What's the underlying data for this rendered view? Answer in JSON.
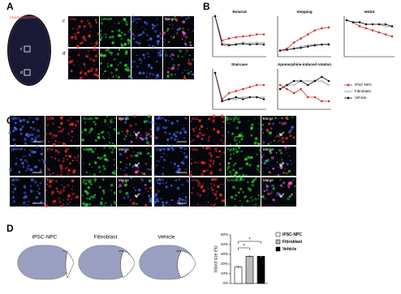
{
  "panel_a": {
    "label": "A",
    "brain_title": "hNu/Nestin/DAPI",
    "brain_boxes": [
      "c",
      "d"
    ],
    "row_labels": [
      "c",
      "d"
    ],
    "channels": [
      "hNu",
      "Nestin",
      "DAPI",
      "Merge"
    ]
  },
  "panel_b": {
    "label": "B",
    "series_names": [
      "iPSC-NPC",
      "Fibroblast",
      "Vehicle"
    ],
    "series_colors": [
      "#d62728",
      "#888888",
      "#111111"
    ],
    "charts": [
      {
        "type": "line",
        "title": "Rotarod",
        "ylim": [
          0,
          100
        ],
        "series": [
          {
            "values": [
              100,
              40,
              45,
              48,
              50,
              52,
              55,
              55
            ]
          },
          {
            "values": [
              100,
              35,
              30,
              32,
              35,
              33,
              35,
              34
            ]
          },
          {
            "values": [
              100,
              30,
              28,
              30,
              32,
              30,
              31,
              30
            ]
          }
        ]
      },
      {
        "type": "line",
        "title": "Stepping",
        "ylim": [
          0,
          100
        ],
        "series": [
          {
            "values": [
              15,
              20,
              35,
              45,
              55,
              65,
              70,
              72
            ]
          },
          {
            "values": [
              15,
              18,
              20,
              25,
              28,
              30,
              30,
              32
            ]
          },
          {
            "values": [
              15,
              17,
              20,
              22,
              25,
              28,
              30,
              30
            ]
          }
        ]
      },
      {
        "type": "line",
        "title": "mNSS",
        "ylim": [
          0,
          20
        ],
        "series": [
          {
            "values": [
              18,
              17,
              15,
              14,
              13,
              12,
              11,
              10
            ]
          },
          {
            "values": [
              18,
              17,
              17,
              16,
              16,
              16,
              15,
              15
            ]
          },
          {
            "values": [
              18,
              17,
              17,
              16,
              16,
              16,
              16,
              15
            ]
          }
        ]
      },
      {
        "type": "line",
        "title": "Staircase",
        "ylim": [
          0,
          20
        ],
        "series": [
          {
            "values": [
              18,
              5,
              8,
              9,
              10,
              11,
              12,
              12
            ]
          },
          {
            "values": [
              18,
              4,
              5,
              5,
              6,
              6,
              6,
              6
            ]
          },
          {
            "values": [
              18,
              4,
              5,
              6,
              5,
              6,
              6,
              5
            ]
          }
        ]
      },
      {
        "type": "line",
        "title": "Apomorphine-induced rotation",
        "ylim": [
          0,
          10
        ],
        "series": [
          {
            "values": [
              6,
              5,
              4,
              5,
              3,
              3,
              2,
              2
            ]
          },
          {
            "values": [
              5,
              6,
              6,
              7,
              7,
              7,
              7,
              6
            ]
          },
          {
            "values": [
              5,
              6,
              7,
              7,
              6,
              7,
              8,
              7
            ]
          }
        ]
      }
    ]
  },
  "panel_c": {
    "label": "C",
    "rows": [
      [
        "DAPI",
        "hNu",
        "Nestin",
        "Merge",
        "DAPI",
        "hNu",
        "Synp32",
        "Merge"
      ],
      [
        "DAPI",
        "hNu",
        "MAP2",
        "Merge",
        "DAPI",
        "hNu",
        "GABA",
        "Merge"
      ],
      [
        "DAPI",
        "hNu",
        "NeuN",
        "Merge",
        "DAPI",
        "hNu",
        "GAD65/67",
        "Merge"
      ]
    ]
  },
  "panel_d": {
    "label": "D",
    "groups": [
      "iPSC-NPC",
      "Fibroblast",
      "Vehicle"
    ],
    "chart_data": {
      "type": "bar",
      "categories": [
        "iPSC-NPC",
        "Fibroblast",
        "Vehicle"
      ],
      "values": [
        17,
        28,
        28
      ],
      "errors": [
        1,
        1,
        1
      ],
      "colors": [
        "#ffffff",
        "#bbbbbb",
        "#000000"
      ],
      "ylabel": "Infarct size (%)",
      "ylim": [
        0,
        50
      ],
      "yticks": [
        {
          "value": 0,
          "label": "0%"
        },
        {
          "value": 10,
          "label": "10%"
        },
        {
          "value": 20,
          "label": "20%"
        },
        {
          "value": 30,
          "label": "30%"
        },
        {
          "value": 40,
          "label": "40%"
        },
        {
          "value": 50,
          "label": "50%"
        }
      ],
      "significance": [
        "*",
        "*"
      ]
    }
  }
}
